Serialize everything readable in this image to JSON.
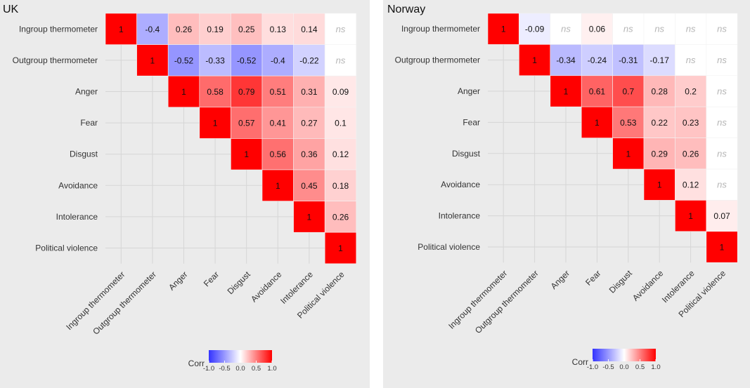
{
  "chart_data": [
    {
      "type": "heatmap",
      "title": "UK",
      "variables": [
        "Ingroup thermometer",
        "Outgroup thermometer",
        "Anger",
        "Fear",
        "Disgust",
        "Avoidance",
        "Intolerance",
        "Political violence"
      ],
      "cells": [
        [
          1,
          -0.4,
          0.26,
          0.19,
          0.25,
          0.13,
          0.14,
          "ns"
        ],
        [
          null,
          1,
          -0.52,
          -0.33,
          -0.52,
          -0.4,
          -0.22,
          "ns"
        ],
        [
          null,
          null,
          1,
          0.58,
          0.79,
          0.51,
          0.31,
          0.09
        ],
        [
          null,
          null,
          null,
          1,
          0.57,
          0.41,
          0.27,
          0.1
        ],
        [
          null,
          null,
          null,
          null,
          1,
          0.56,
          0.36,
          0.12
        ],
        [
          null,
          null,
          null,
          null,
          null,
          1,
          0.45,
          0.18
        ],
        [
          null,
          null,
          null,
          null,
          null,
          null,
          1,
          0.26
        ],
        [
          null,
          null,
          null,
          null,
          null,
          null,
          null,
          1
        ]
      ],
      "legend": {
        "title": "Corr",
        "ticks": [
          "-1.0",
          "-0.5",
          "0.0",
          "0.5",
          "1.0"
        ],
        "low_color": "#3333ff",
        "mid_color": "#ffffff",
        "high_color": "#ff0000"
      }
    },
    {
      "type": "heatmap",
      "title": "Norway",
      "variables": [
        "Ingroup thermometer",
        "Outgroup thermometer",
        "Anger",
        "Fear",
        "Disgust",
        "Avoidance",
        "Intolerance",
        "Political violence"
      ],
      "cells": [
        [
          1,
          -0.09,
          "ns",
          0.06,
          "ns",
          "ns",
          "ns",
          "ns"
        ],
        [
          null,
          1,
          -0.34,
          -0.24,
          -0.31,
          -0.17,
          "ns",
          "ns"
        ],
        [
          null,
          null,
          1,
          0.61,
          0.7,
          0.28,
          0.2,
          "ns"
        ],
        [
          null,
          null,
          null,
          1,
          0.53,
          0.22,
          0.23,
          "ns"
        ],
        [
          null,
          null,
          null,
          null,
          1,
          0.29,
          0.26,
          "ns"
        ],
        [
          null,
          null,
          null,
          null,
          null,
          1,
          0.12,
          "ns"
        ],
        [
          null,
          null,
          null,
          null,
          null,
          null,
          1,
          0.07
        ],
        [
          null,
          null,
          null,
          null,
          null,
          null,
          null,
          1
        ]
      ],
      "legend": {
        "title": "Corr",
        "ticks": [
          "-1.0",
          "-0.5",
          "0.0",
          "0.5",
          "1.0"
        ],
        "low_color": "#3333ff",
        "mid_color": "#ffffff",
        "high_color": "#ff0000"
      }
    }
  ],
  "colors": {
    "panel_background": "#ebebeb",
    "grid_line": "#d6d6d6",
    "cell_border": "#f2f2f2",
    "ns_cell": "#ffffff"
  }
}
